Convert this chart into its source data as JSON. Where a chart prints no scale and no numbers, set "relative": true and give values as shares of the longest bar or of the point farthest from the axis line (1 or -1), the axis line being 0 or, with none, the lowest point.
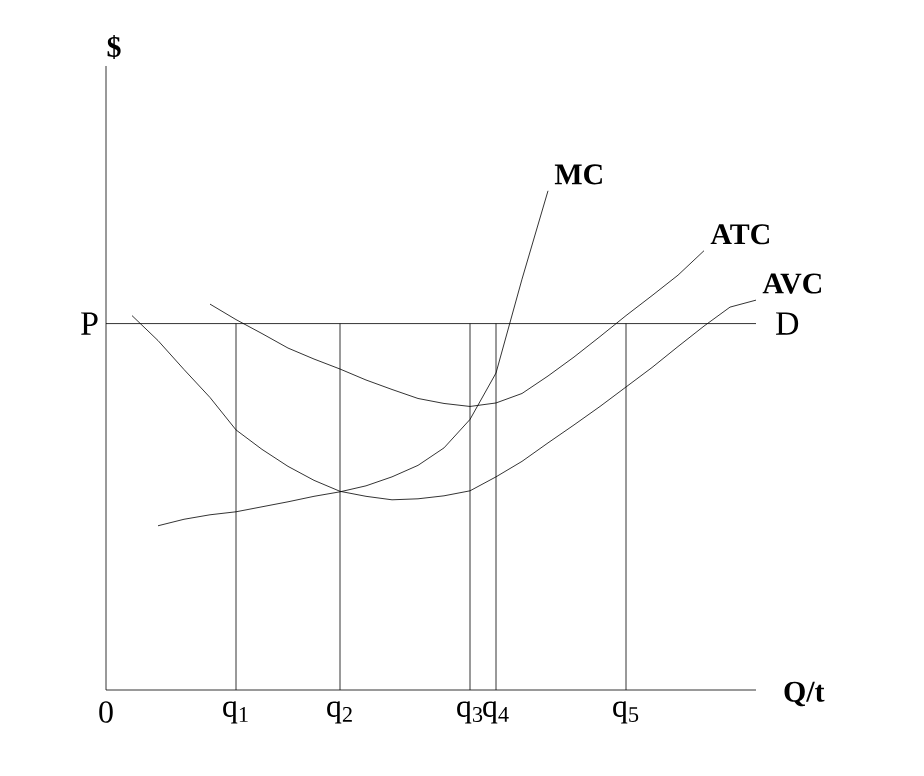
{
  "chart_data": {
    "type": "line",
    "relative": true,
    "xlabel": "Q/t",
    "ylabel": "$",
    "categories": [
      "0",
      null,
      null,
      null,
      null,
      "q$_{1}$",
      null,
      null,
      null,
      "q$_{2}$",
      null,
      null,
      null,
      null,
      "q$_{3}$",
      "q$_{4}$",
      null,
      null,
      null,
      null,
      "q$_{5}$",
      null,
      null,
      null,
      null,
      null
    ],
    "series": [
      {
        "name": "MC",
        "color": "#000000",
        "values": [
          null,
          null,
          0.329,
          0.342,
          0.351,
          0.357,
          0.367,
          0.377,
          0.388,
          0.397,
          0.409,
          0.427,
          0.45,
          0.485,
          0.542,
          0.635,
          0.823,
          1.0,
          null,
          null,
          null,
          null,
          null,
          null,
          null,
          null
        ]
      },
      {
        "name": "ATC",
        "color": "#000000",
        "values": [
          null,
          null,
          null,
          null,
          0.773,
          0.742,
          0.714,
          0.685,
          0.663,
          0.643,
          0.621,
          0.602,
          0.584,
          0.574,
          0.568,
          0.575,
          0.594,
          0.629,
          0.667,
          0.708,
          0.75,
          0.79,
          0.831,
          0.88,
          null,
          null
        ]
      },
      {
        "name": "AVC",
        "color": "#000000",
        "values": [
          null,
          0.75,
          0.7,
          0.642,
          0.586,
          0.521,
          0.482,
          0.448,
          0.42,
          0.398,
          0.388,
          0.381,
          0.383,
          0.389,
          0.399,
          0.427,
          0.458,
          0.495,
          0.531,
          0.568,
          0.607,
          0.646,
          0.688,
          0.729,
          0.767,
          0.781
        ]
      }
    ],
    "ref_lines": [
      {
        "axis": "y",
        "value": 0.734,
        "label": "D",
        "color": "#000000"
      },
      {
        "axis": "x",
        "value": "q$_{1}$",
        "color": "#000000"
      },
      {
        "axis": "x",
        "value": "q$_{2}$",
        "color": "#000000"
      },
      {
        "axis": "x",
        "value": "q$_{3}$",
        "color": "#000000"
      },
      {
        "axis": "x",
        "value": "q$_{4}$",
        "color": "#000000"
      },
      {
        "axis": "x",
        "value": "q$_{5}$",
        "color": "#000000"
      }
    ],
    "annotations": [
      "P"
    ]
  }
}
